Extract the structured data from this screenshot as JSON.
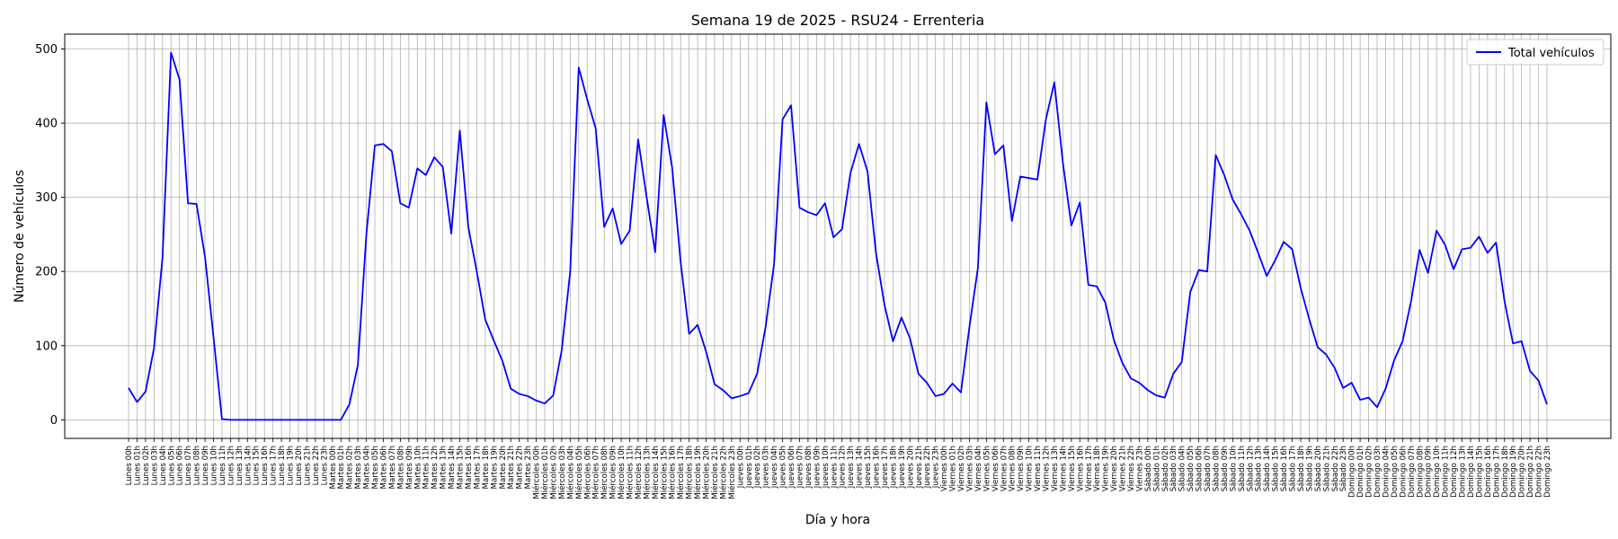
{
  "chart_data": {
    "type": "line",
    "title": "Semana 19 de 2025 - RSU24 - Errenteria",
    "xlabel": "Día y hora",
    "ylabel": "Número de vehículos",
    "ylim": [
      -25,
      520
    ],
    "yticks": [
      0,
      100,
      200,
      300,
      400,
      500
    ],
    "grid": true,
    "legend_position": "top-right",
    "days": [
      "Lunes",
      "Martes",
      "Miércoles",
      "Jueves",
      "Viernes",
      "Sábado",
      "Domingo"
    ],
    "hours": [
      "00h",
      "01h",
      "02h",
      "03h",
      "04h",
      "05h",
      "06h",
      "07h",
      "08h",
      "09h",
      "10h",
      "11h",
      "12h",
      "13h",
      "14h",
      "15h",
      "16h",
      "17h",
      "18h",
      "19h",
      "20h",
      "21h",
      "22h",
      "23h"
    ],
    "series": [
      {
        "name": "Total vehículos",
        "color": "#0000ff",
        "values": [
          43,
          24,
          38,
          97,
          219,
          495,
          459,
          292,
          291,
          220,
          112,
          1,
          0,
          0,
          0,
          0,
          0,
          0,
          0,
          0,
          0,
          0,
          0,
          0,
          0,
          0,
          21,
          74,
          250,
          370,
          372,
          362,
          292,
          286,
          339,
          330,
          354,
          341,
          251,
          390,
          260,
          200,
          135,
          107,
          80,
          42,
          35,
          32,
          26,
          22,
          33,
          94,
          200,
          475,
          432,
          393,
          260,
          285,
          237,
          255,
          378,
          300,
          226,
          411,
          340,
          213,
          116,
          128,
          92,
          48,
          40,
          29,
          32,
          36,
          62,
          125,
          210,
          405,
          424,
          286,
          280,
          276,
          292,
          246,
          257,
          333,
          372,
          335,
          225,
          155,
          106,
          138,
          110,
          62,
          50,
          32,
          35,
          49,
          37,
          125,
          205,
          428,
          358,
          370,
          268,
          328,
          326,
          324,
          405,
          455,
          347,
          262,
          293,
          182,
          180,
          158,
          108,
          77,
          56,
          50,
          40,
          33,
          30,
          62,
          78,
          172,
          202,
          200,
          357,
          330,
          297,
          277,
          255,
          225,
          194,
          215,
          240,
          230,
          178,
          136,
          98,
          88,
          70,
          43,
          50,
          27,
          30,
          17,
          42,
          80,
          106,
          160,
          229,
          198,
          255,
          236,
          203,
          230,
          232,
          247,
          225,
          239,
          160,
          103,
          106,
          66,
          53,
          21
        ]
      }
    ]
  }
}
